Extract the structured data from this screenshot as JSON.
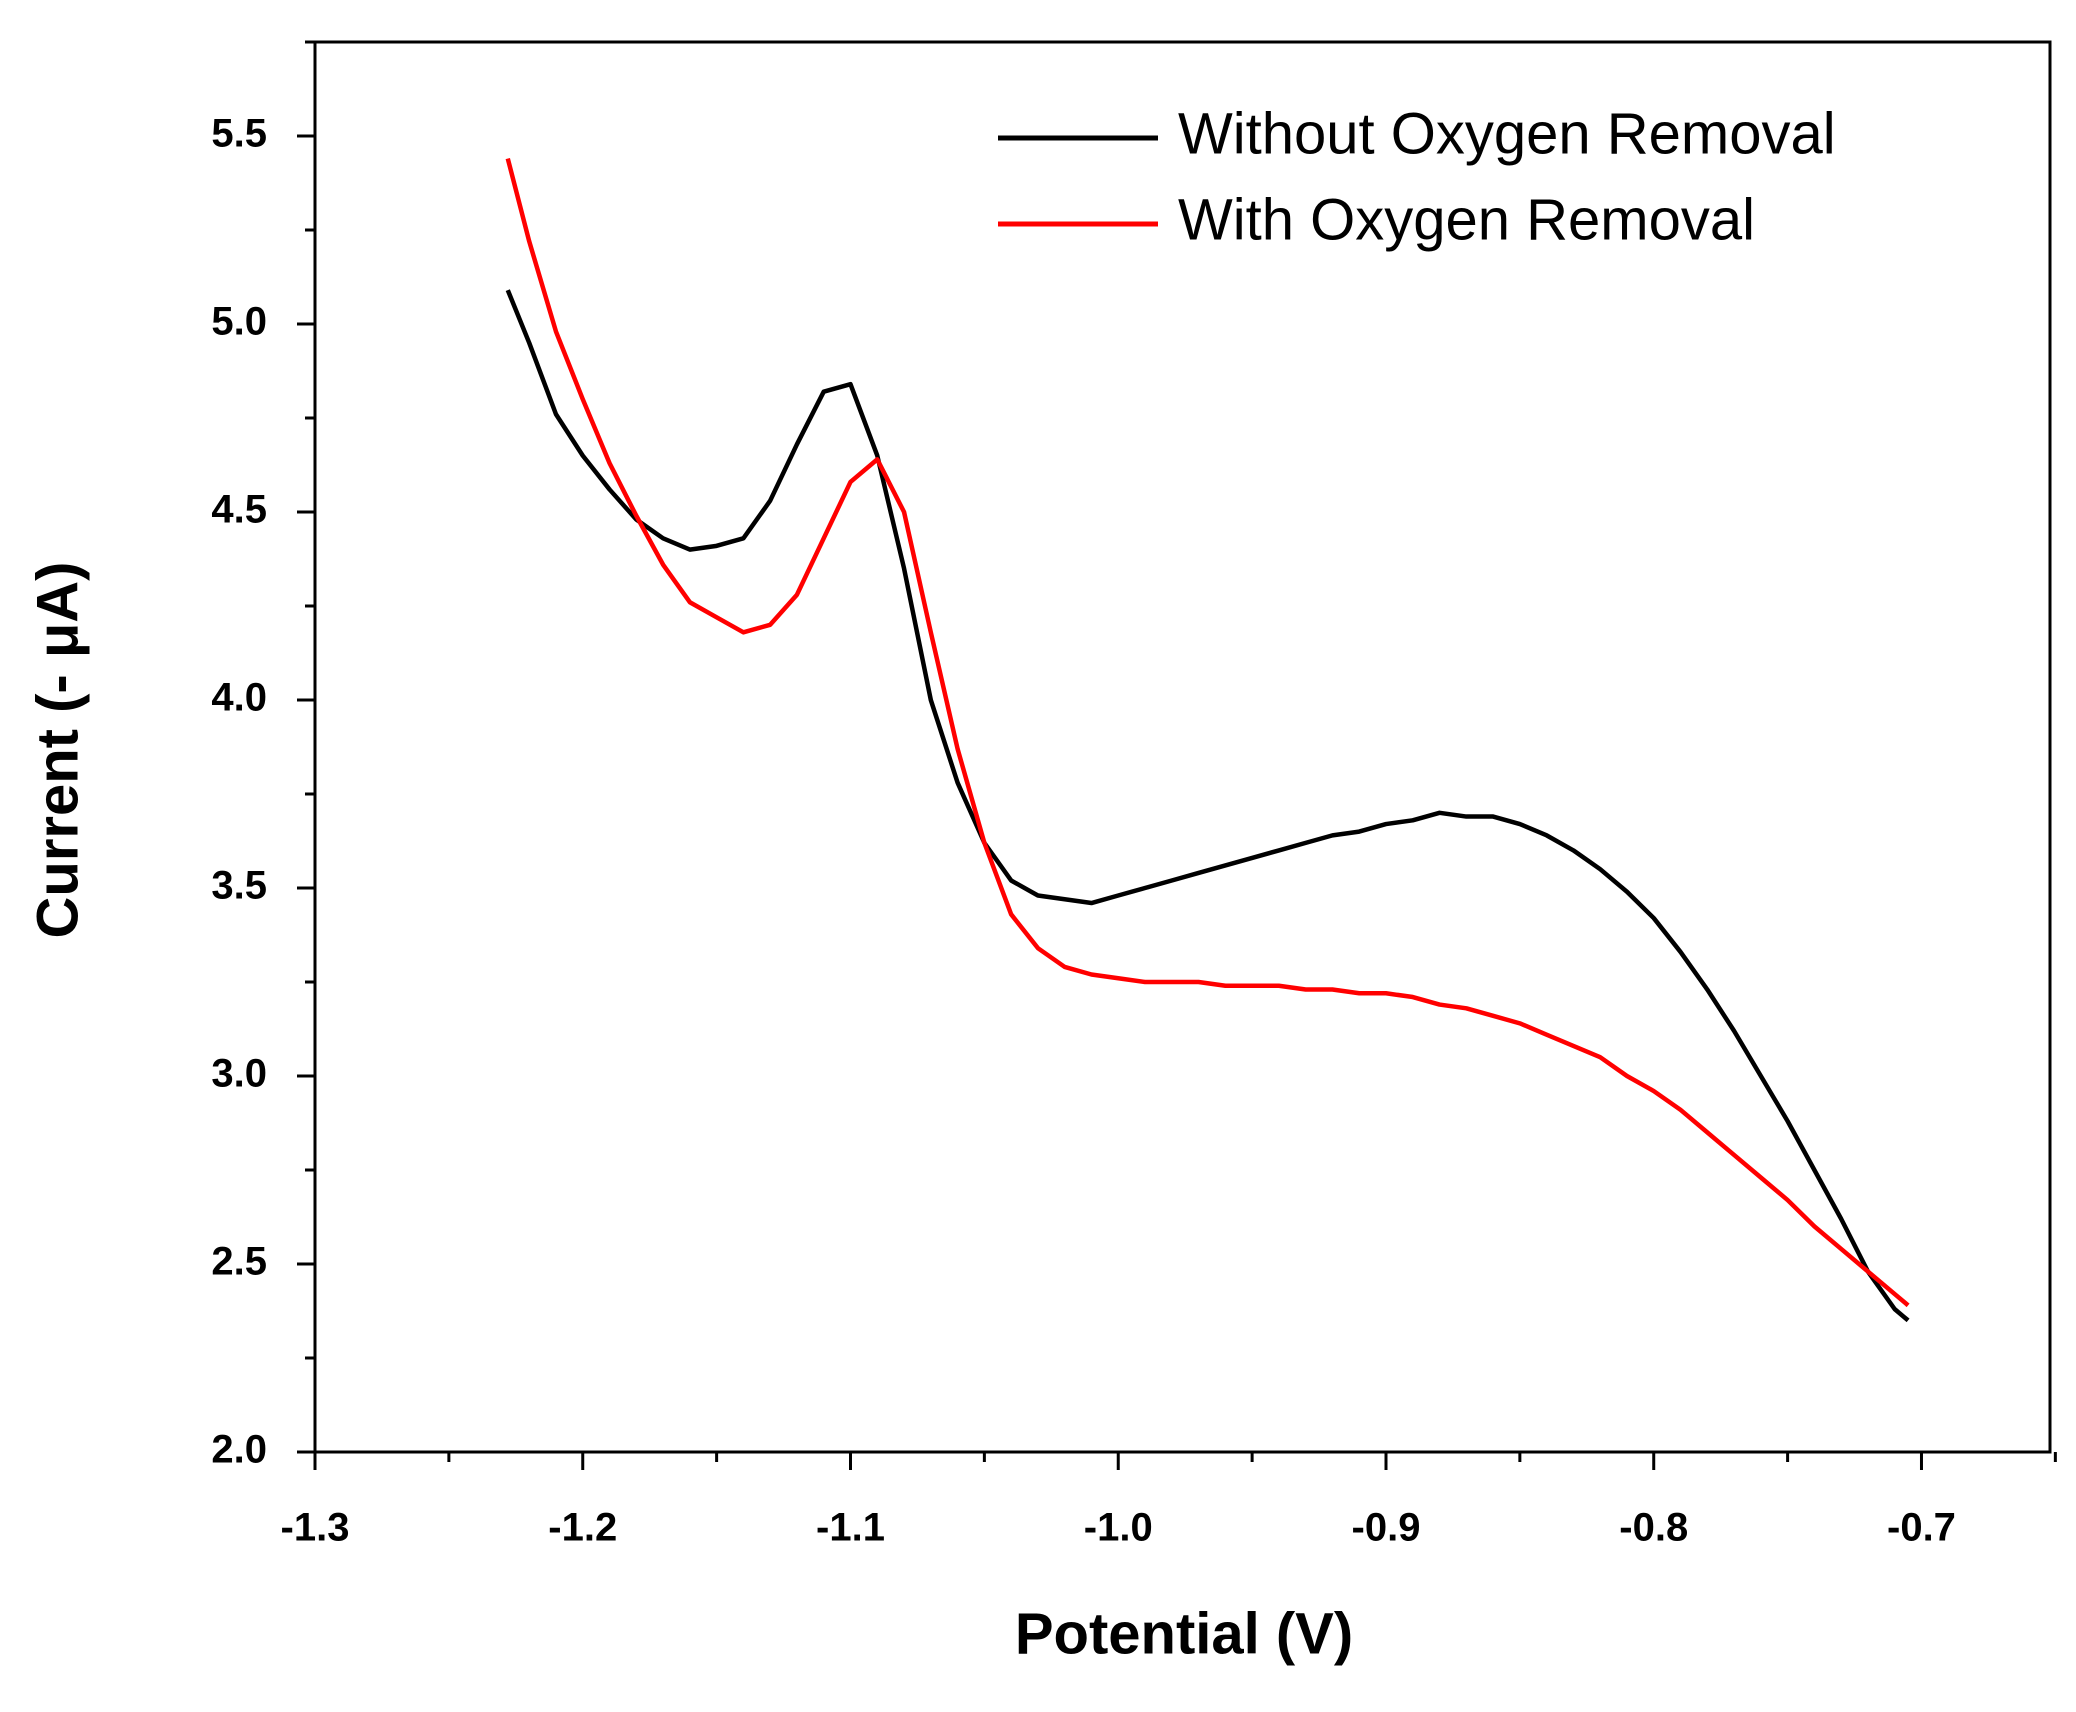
{
  "chart_data": {
    "type": "line",
    "xlabel": "Potential (V)",
    "ylabel": "Current (- μA)",
    "x": [
      -1.228,
      -1.22,
      -1.21,
      -1.2,
      -1.19,
      -1.18,
      -1.17,
      -1.16,
      -1.15,
      -1.14,
      -1.13,
      -1.12,
      -1.11,
      -1.1,
      -1.09,
      -1.08,
      -1.07,
      -1.06,
      -1.05,
      -1.04,
      -1.03,
      -1.02,
      -1.01,
      -1.0,
      -0.99,
      -0.98,
      -0.97,
      -0.96,
      -0.95,
      -0.94,
      -0.93,
      -0.92,
      -0.91,
      -0.9,
      -0.89,
      -0.88,
      -0.87,
      -0.86,
      -0.85,
      -0.84,
      -0.83,
      -0.82,
      -0.81,
      -0.8,
      -0.79,
      -0.78,
      -0.77,
      -0.76,
      -0.75,
      -0.74,
      -0.73,
      -0.72,
      -0.71,
      -0.705
    ],
    "series": [
      {
        "name": "Without Oxygen Removal",
        "color": "#000000",
        "values": [
          5.09,
          4.95,
          4.76,
          4.65,
          4.56,
          4.48,
          4.43,
          4.4,
          4.41,
          4.43,
          4.53,
          4.68,
          4.82,
          4.84,
          4.65,
          4.35,
          4.0,
          3.78,
          3.62,
          3.52,
          3.48,
          3.47,
          3.46,
          3.48,
          3.5,
          3.52,
          3.54,
          3.56,
          3.58,
          3.6,
          3.62,
          3.64,
          3.65,
          3.67,
          3.68,
          3.7,
          3.69,
          3.69,
          3.67,
          3.64,
          3.6,
          3.55,
          3.49,
          3.42,
          3.33,
          3.23,
          3.12,
          3.0,
          2.88,
          2.75,
          2.62,
          2.48,
          2.38,
          2.35
        ]
      },
      {
        "name": "With Oxygen Removal",
        "color": "#ff0000",
        "values": [
          5.44,
          5.22,
          4.98,
          4.8,
          4.63,
          4.49,
          4.36,
          4.26,
          4.22,
          4.18,
          4.2,
          4.28,
          4.43,
          4.58,
          4.64,
          4.5,
          4.18,
          3.87,
          3.62,
          3.43,
          3.34,
          3.29,
          3.27,
          3.26,
          3.25,
          3.25,
          3.25,
          3.24,
          3.24,
          3.24,
          3.23,
          3.23,
          3.22,
          3.22,
          3.21,
          3.19,
          3.18,
          3.16,
          3.14,
          3.11,
          3.08,
          3.05,
          3.0,
          2.96,
          2.91,
          2.85,
          2.79,
          2.73,
          2.67,
          2.6,
          2.54,
          2.48,
          2.42,
          2.39
        ]
      }
    ],
    "xlim": [
      -1.3,
      -0.652
    ],
    "ylim": [
      2.0,
      5.75
    ],
    "xticks": [
      -1.3,
      -1.2,
      -1.1,
      {
        "value": -1.0,
        "label": "-1.0"
      },
      -0.9,
      -0.8,
      -0.7
    ],
    "yticks": [
      {
        "value": 2.0,
        "label": "2.0"
      },
      2.5,
      {
        "value": 3.0,
        "label": "3.0"
      },
      3.5,
      {
        "value": 4.0,
        "label": "4.0"
      },
      4.5,
      {
        "value": 5.0,
        "label": "5.0"
      },
      5.5
    ],
    "minor_xticks": [
      -1.25,
      -1.15,
      -1.05,
      -0.95,
      -0.85,
      -0.75,
      -0.65
    ],
    "minor_yticks": [
      2.25,
      2.75,
      3.25,
      3.75,
      4.25,
      4.75,
      5.25,
      5.75
    ],
    "grid": false,
    "legend": "upper right"
  }
}
